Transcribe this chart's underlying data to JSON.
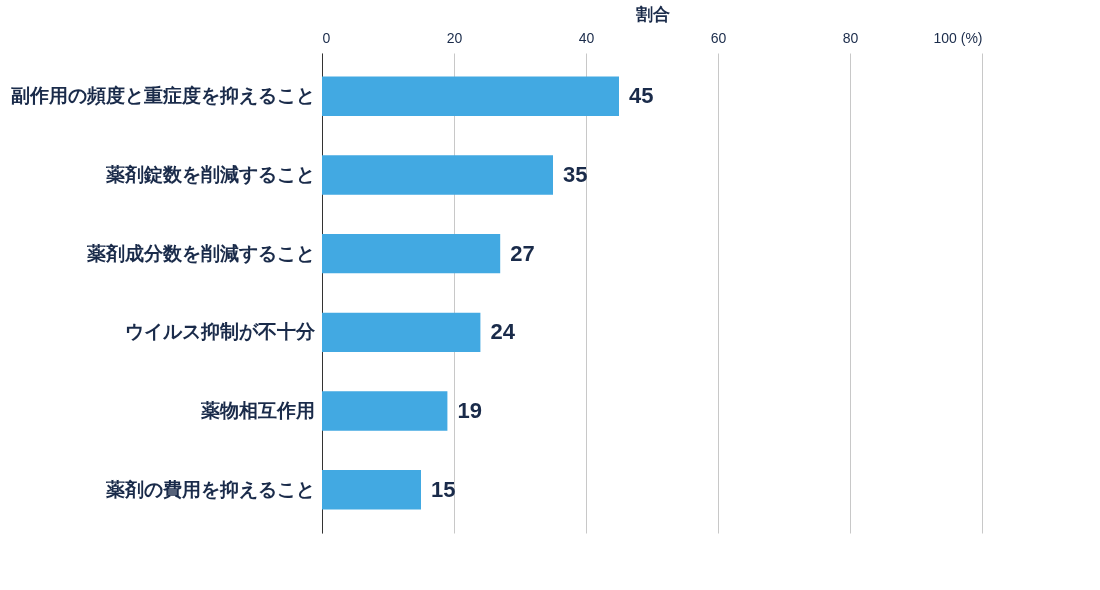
{
  "chart_data": {
    "type": "bar",
    "orientation": "horizontal",
    "xlabel": "割合",
    "categories": [
      "副作用の頻度と重症度を抑えること",
      "薬剤錠数を削減すること",
      "薬剤成分数を削減すること",
      "ウイルス抑制が不十分",
      "薬物相互作用",
      "薬剤の費用を抑えること"
    ],
    "values": [
      45,
      35,
      27,
      24,
      19,
      15
    ],
    "color": "#42a9e2",
    "xlim": [
      0,
      100
    ],
    "xticks": [
      0,
      20,
      40,
      60,
      80,
      {
        "value": 100,
        "label": "100 (%)"
      }
    ],
    "grid": "x",
    "data_labels": true
  }
}
